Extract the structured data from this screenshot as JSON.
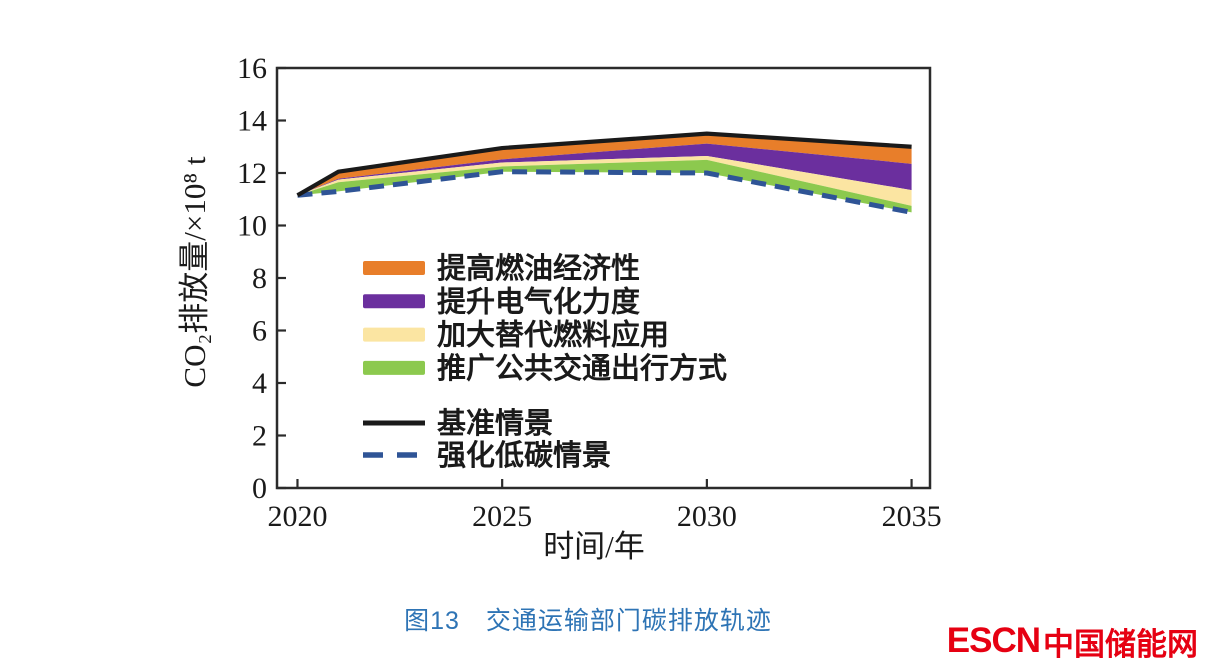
{
  "figure": {
    "caption": "图13　交通运输部门碳排放轨迹",
    "caption_color": "#2E74B5"
  },
  "logo": {
    "latin": "ESCN",
    "cjk": "中国储能网",
    "color": "#E60012"
  },
  "chart_data": {
    "type": "area",
    "title": "",
    "xlabel": "时间/年",
    "ylabel": "CO₂排放量/×10⁸ t",
    "x": [
      2020,
      2021,
      2025,
      2030,
      2035
    ],
    "x_ticks": [
      2020,
      2025,
      2030,
      2035
    ],
    "y_ticks": [
      0,
      2,
      4,
      6,
      8,
      10,
      12,
      14,
      16
    ],
    "xlim": [
      2019.5,
      2035.45
    ],
    "ylim": [
      0,
      16
    ],
    "grid": false,
    "legend_position": "inside-center-left",
    "axis_color": "#2b2b2b",
    "lines": [
      {
        "name": "基准情景",
        "style": "solid",
        "color": "#1a1a1a",
        "values": [
          11.15,
          12.05,
          12.95,
          13.5,
          13.0
        ]
      },
      {
        "name": "强化低碳情景",
        "style": "dashed",
        "color": "#2F5496",
        "values": [
          11.15,
          11.3,
          12.05,
          12.0,
          10.5
        ]
      }
    ],
    "bands": [
      {
        "name": "提高燃油经济性",
        "color": "#E87E2A",
        "upper": [
          11.15,
          12.05,
          12.95,
          13.5,
          13.0
        ],
        "lower": [
          11.15,
          11.78,
          12.52,
          13.12,
          12.35
        ]
      },
      {
        "name": "提升电气化力度",
        "color": "#6B2F9E",
        "upper": [
          11.15,
          11.78,
          12.52,
          13.12,
          12.35
        ],
        "lower": [
          11.15,
          11.75,
          12.4,
          12.65,
          11.35
        ]
      },
      {
        "name": "加大替代燃料应用",
        "color": "#FBE5A2",
        "upper": [
          11.15,
          11.75,
          12.4,
          12.65,
          11.35
        ],
        "lower": [
          11.15,
          11.65,
          12.25,
          12.5,
          10.75
        ]
      },
      {
        "name": "推广公共交通出行方式",
        "color": "#8CC94E",
        "upper": [
          11.15,
          11.65,
          12.25,
          12.5,
          10.75
        ],
        "lower": [
          11.15,
          11.3,
          12.05,
          12.0,
          10.5
        ]
      }
    ]
  }
}
